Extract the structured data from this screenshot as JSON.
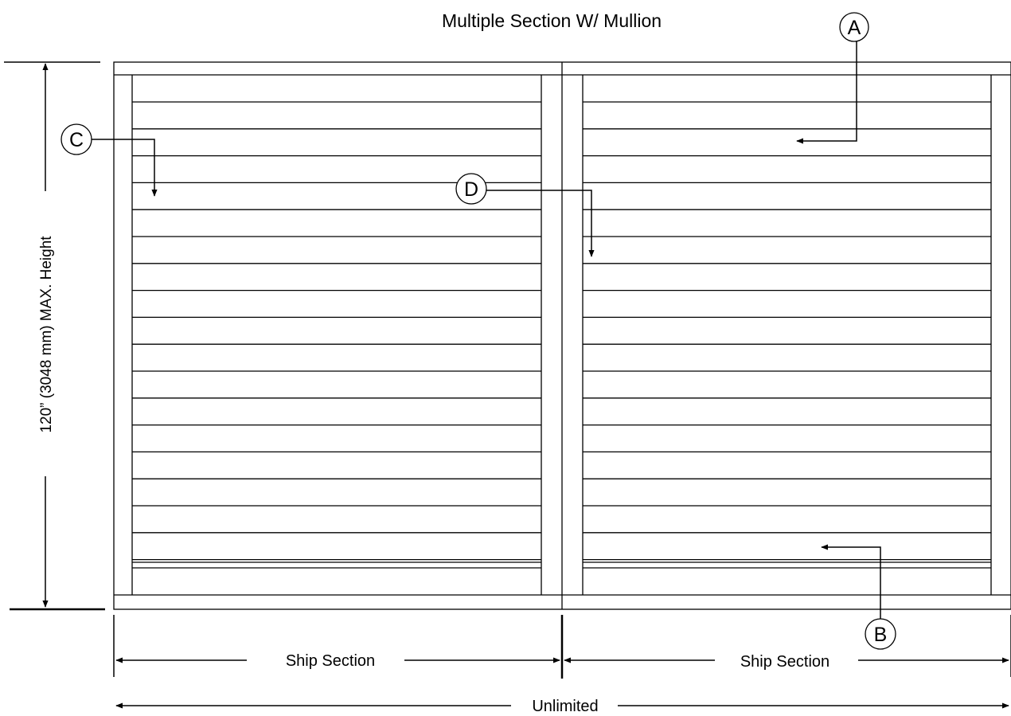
{
  "title": "Multiple Section W/ Mullion",
  "height_label": "120” (3048 mm) MAX. Height",
  "section_labels": [
    "Ship Section",
    "Ship Section"
  ],
  "overall_label": "Unlimited",
  "callouts": {
    "a": "A",
    "b": "B",
    "c": "C",
    "d": "D"
  },
  "colors": {
    "line": "#000000",
    "background": "#ffffff"
  }
}
